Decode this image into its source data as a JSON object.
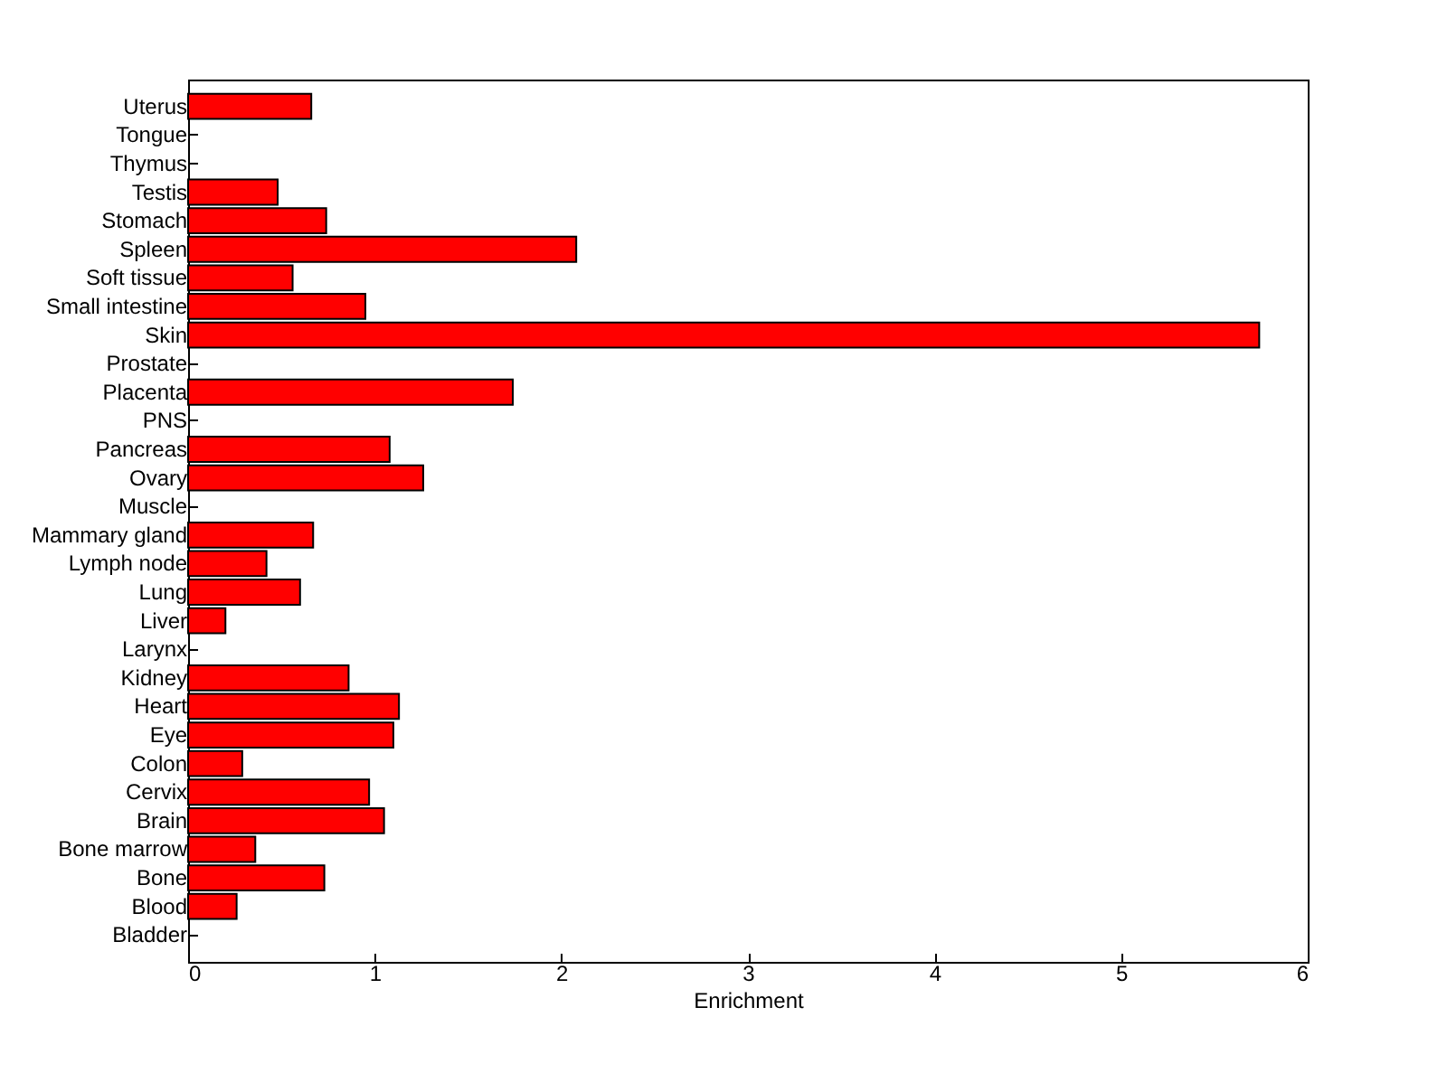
{
  "chart_data": {
    "type": "bar",
    "orientation": "horizontal",
    "xlabel": "Enrichment",
    "categories": [
      "Uterus",
      "Tongue",
      "Thymus",
      "Testis",
      "Stomach",
      "Spleen",
      "Soft tissue",
      "Small intestine",
      "Skin",
      "Prostate",
      "Placenta",
      "PNS",
      "Pancreas",
      "Ovary",
      "Muscle",
      "Mammary gland",
      "Lymph node",
      "Lung",
      "Liver",
      "Larynx",
      "Kidney",
      "Heart",
      "Eye",
      "Colon",
      "Cervix",
      "Brain",
      "Bone marrow",
      "Bone",
      "Blood",
      "Bladder"
    ],
    "values": [
      0.66,
      0,
      0,
      0.48,
      0.74,
      2.08,
      0.56,
      0.95,
      5.74,
      0,
      1.74,
      0,
      1.08,
      1.26,
      0,
      0.67,
      0.42,
      0.6,
      0.2,
      0,
      0.86,
      1.13,
      1.1,
      0.29,
      0.97,
      1.05,
      0.36,
      0.73,
      0.26,
      0
    ],
    "color": "#ff0000",
    "xlim": [
      0,
      6
    ],
    "xticks": [
      0,
      1,
      2,
      3,
      4,
      5,
      6
    ],
    "grid": false
  }
}
